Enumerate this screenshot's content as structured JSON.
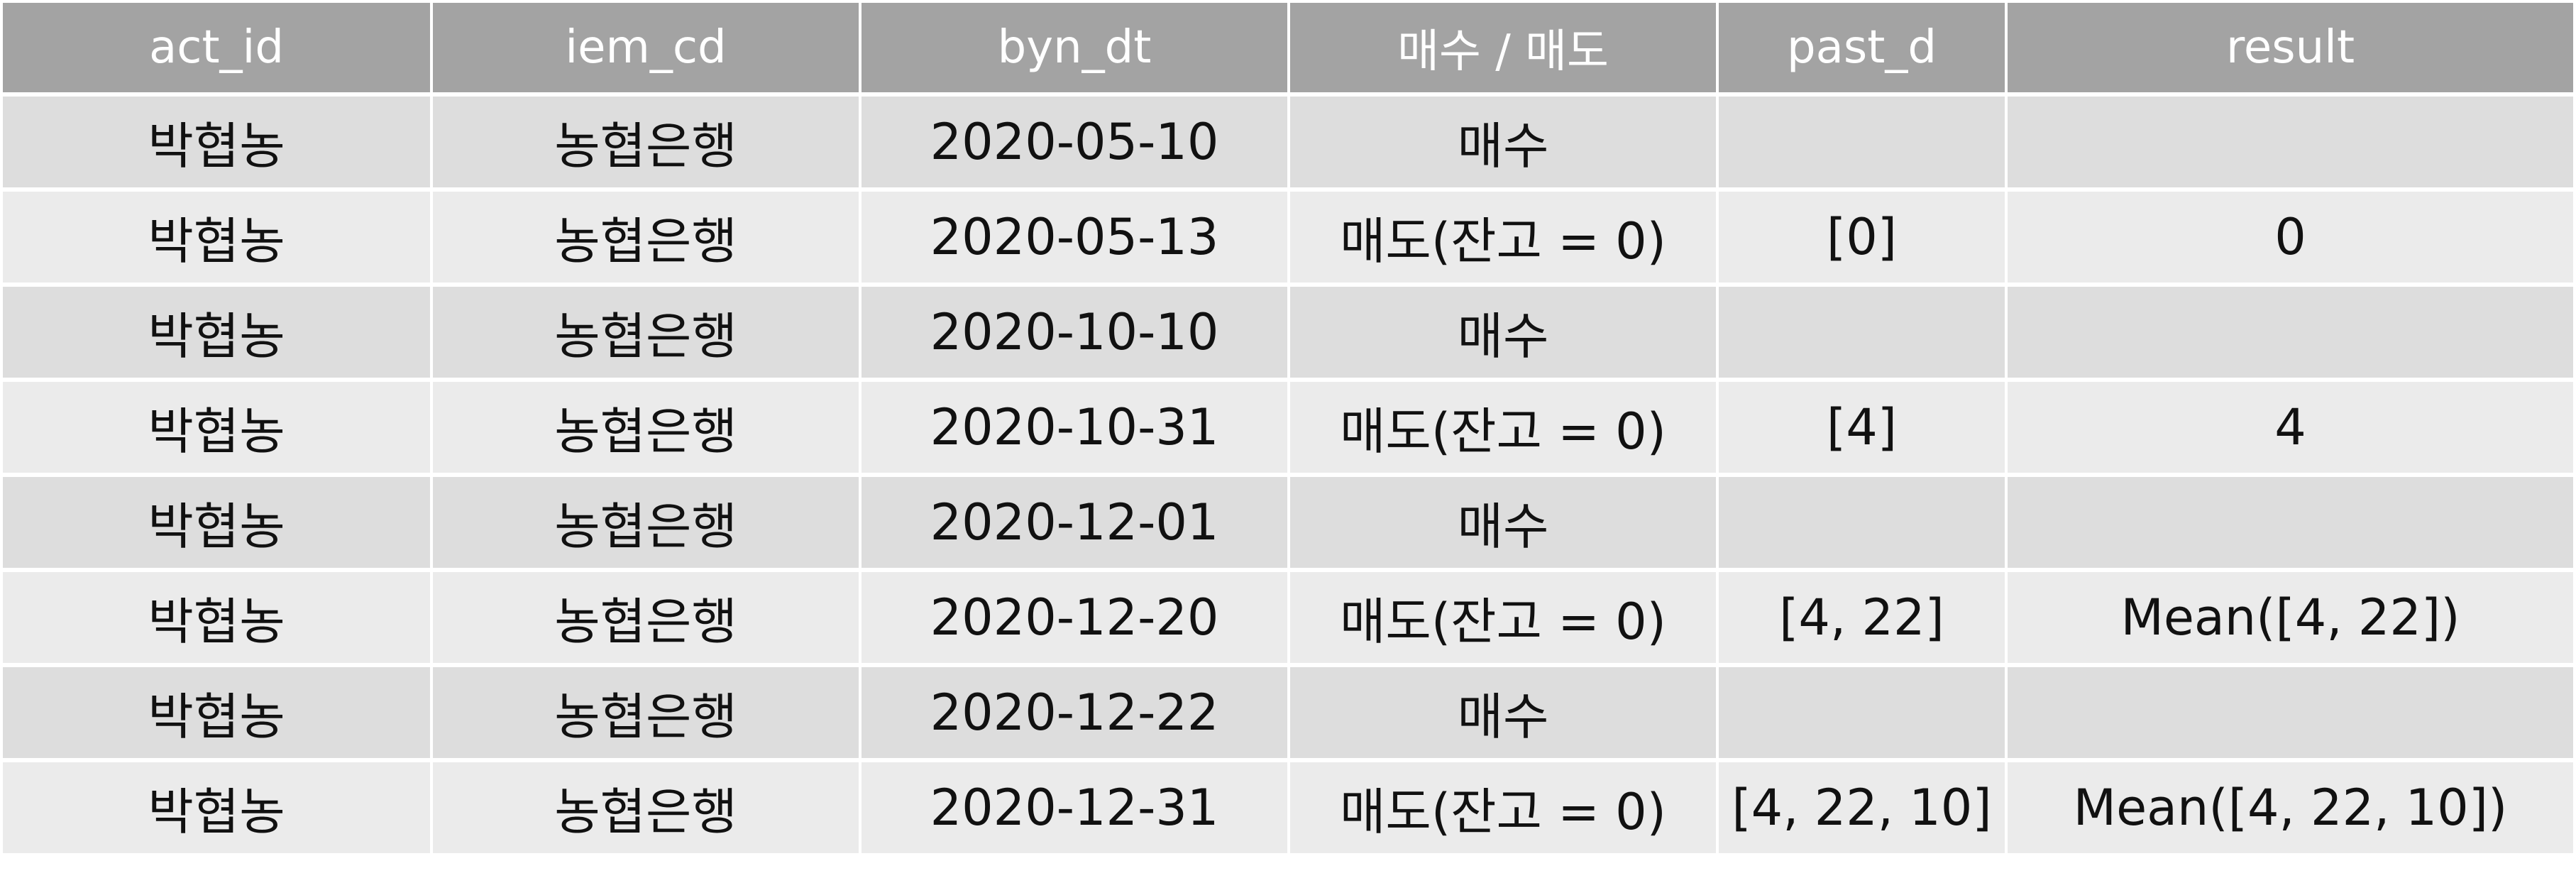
{
  "table": {
    "headers": [
      "act_id",
      "iem_cd",
      "byn_dt",
      "매수 / 매도",
      "past_d",
      "result"
    ],
    "rows": [
      [
        "박협농",
        "농협은행",
        "2020-05-10",
        "매수",
        "",
        ""
      ],
      [
        "박협농",
        "농협은행",
        "2020-05-13",
        "매도(잔고 = 0)",
        "[0]",
        "0"
      ],
      [
        "박협농",
        "농협은행",
        "2020-10-10",
        "매수",
        "",
        ""
      ],
      [
        "박협농",
        "농협은행",
        "2020-10-31",
        "매도(잔고 = 0)",
        "[4]",
        "4"
      ],
      [
        "박협농",
        "농협은행",
        "2020-12-01",
        "매수",
        "",
        ""
      ],
      [
        "박협농",
        "농협은행",
        "2020-12-20",
        "매도(잔고 = 0)",
        "[4, 22]",
        "Mean([4, 22])"
      ],
      [
        "박협농",
        "농협은행",
        "2020-12-22",
        "매수",
        "",
        ""
      ],
      [
        "박협농",
        "농협은행",
        "2020-12-31",
        "매도(잔고 = 0)",
        "[4, 22, 10]",
        "Mean([4, 22, 10])"
      ]
    ],
    "colors": {
      "header_bg": "#a3a3a3",
      "header_text": "#ffffff",
      "row_odd_bg": "#dddddd",
      "row_even_bg": "#ebebeb",
      "cell_text": "#111111"
    }
  }
}
